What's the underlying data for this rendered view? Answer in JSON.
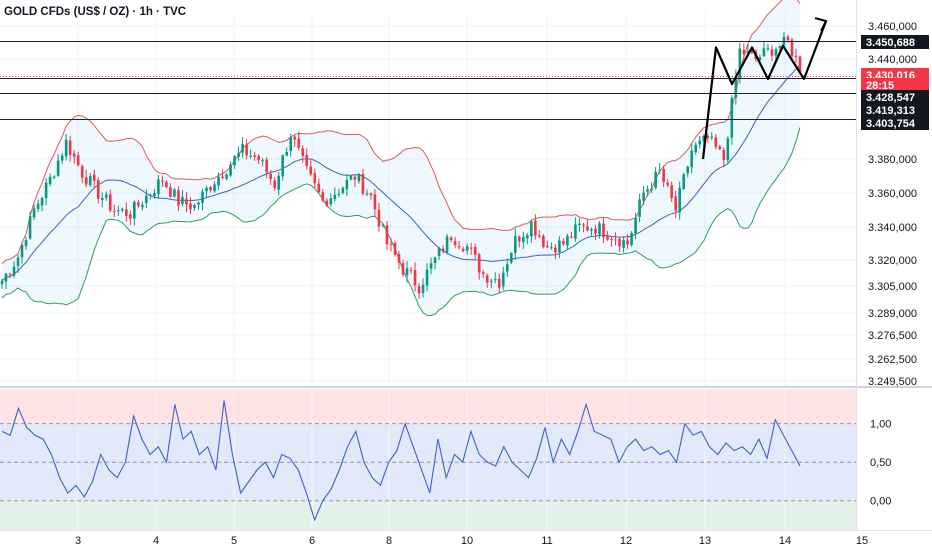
{
  "header": {
    "title": "GOLD CFDs (US$ / OZ) · 1h · TVC"
  },
  "chart_data": [
    {
      "type": "candlestick",
      "title": "GOLD CFDs (US$ / OZ) · 1h · TVC",
      "x_ticks": [
        "3",
        "4",
        "5",
        "6",
        "8",
        "10",
        "11",
        "12",
        "13",
        "14",
        "15"
      ],
      "y_ticks": [
        "3.460,000",
        "3.440,000",
        "3.380,000",
        "3.360,000",
        "3.340,000",
        "3.320,000",
        "3.305,000",
        "3.289,000",
        "3.276,500",
        "3.262,500",
        "3.249,500"
      ],
      "y_range": [
        3249.5,
        3460.0
      ],
      "price_levels": [
        {
          "label": "3.450,688",
          "value": 3450.688,
          "style": "dark"
        },
        {
          "label": "3.430,016",
          "value": 3430.016,
          "style": "red"
        },
        {
          "label": "28:15",
          "style": "red"
        },
        {
          "label": "3.428,547",
          "value": 3428.547,
          "style": "dark"
        },
        {
          "label": "3.419,313",
          "value": 3419.313,
          "style": "dark"
        },
        {
          "label": "3.403,754",
          "value": 3403.754,
          "style": "dark"
        }
      ],
      "series": [
        {
          "name": "price",
          "color": "#e03a3a",
          "up_color": "#089981",
          "down_color": "#f23645"
        },
        {
          "name": "upper band",
          "color": "#e05a5a"
        },
        {
          "name": "middle band",
          "color": "#3a63c9"
        },
        {
          "name": "lower band",
          "color": "#2e9e5b"
        }
      ],
      "price_path": {
        "x_index": [
          0,
          4,
          8,
          12,
          16,
          20,
          24,
          28,
          32,
          36,
          40,
          44,
          48,
          52,
          56,
          60,
          64,
          68,
          72,
          76,
          80,
          84,
          88,
          92,
          96,
          100,
          104,
          108,
          112,
          116,
          120,
          124,
          128,
          132,
          136,
          140,
          144,
          148,
          152,
          156,
          160,
          164,
          168,
          172,
          176,
          180,
          184,
          188,
          192,
          196,
          200
        ],
        "values": [
          3308,
          3322,
          3350,
          3368,
          3390,
          3372,
          3360,
          3350,
          3348,
          3358,
          3368,
          3355,
          3352,
          3365,
          3375,
          3385,
          3380,
          3365,
          3395,
          3372,
          3355,
          3362,
          3370,
          3358,
          3330,
          3315,
          3305,
          3320,
          3335,
          3328,
          3312,
          3308,
          3332,
          3342,
          3328,
          3330,
          3340,
          3340,
          3335,
          3330,
          3360,
          3372,
          3350,
          3385,
          3392,
          3380,
          3445,
          3440,
          3446,
          3450,
          3430
        ]
      },
      "annotation_zigzag": [
        3380,
        3447,
        3425,
        3447,
        3428,
        3448,
        3428,
        3463
      ],
      "grid": true,
      "legend": "none"
    },
    {
      "type": "line",
      "y_ticks": [
        "1,00",
        "0,50",
        "0,00"
      ],
      "y_range": [
        -0.38,
        1.45
      ],
      "bands": [
        {
          "from": 1.0,
          "to": 1.45,
          "color": "#fde3e3"
        },
        {
          "from": 0.0,
          "to": 1.0,
          "color": "#e2e9fb"
        },
        {
          "from": -0.38,
          "to": 0.0,
          "color": "#e3f2e8"
        }
      ],
      "series": [
        {
          "name": "oscillator",
          "color": "#3a63c9",
          "values": [
            0.9,
            0.85,
            1.2,
            0.95,
            0.85,
            0.8,
            0.6,
            0.3,
            0.1,
            0.2,
            0.05,
            0.25,
            0.6,
            0.4,
            0.3,
            0.5,
            1.1,
            0.8,
            0.6,
            0.7,
            0.5,
            1.25,
            0.8,
            0.9,
            0.6,
            0.7,
            0.4,
            1.3,
            0.6,
            0.1,
            0.25,
            0.4,
            0.5,
            0.3,
            0.6,
            0.55,
            0.4,
            0.1,
            -0.25,
            0.0,
            0.15,
            0.4,
            0.7,
            0.9,
            0.5,
            0.3,
            0.2,
            0.5,
            0.65,
            1.0,
            0.7,
            0.4,
            0.1,
            0.8,
            0.3,
            0.6,
            0.5,
            0.9,
            0.6,
            0.5,
            0.45,
            0.7,
            0.5,
            0.4,
            0.3,
            0.55,
            0.95,
            0.5,
            0.8,
            0.6,
            0.9,
            1.25,
            0.9,
            0.85,
            0.8,
            0.5,
            0.7,
            0.8,
            0.65,
            0.7,
            0.6,
            0.65,
            0.5,
            1.0,
            0.85,
            0.9,
            0.7,
            0.6,
            0.75,
            0.65,
            0.7,
            0.6,
            0.8,
            0.55,
            1.05,
            0.85,
            0.65,
            0.45
          ]
        }
      ],
      "grid": true,
      "legend": "none"
    }
  ]
}
